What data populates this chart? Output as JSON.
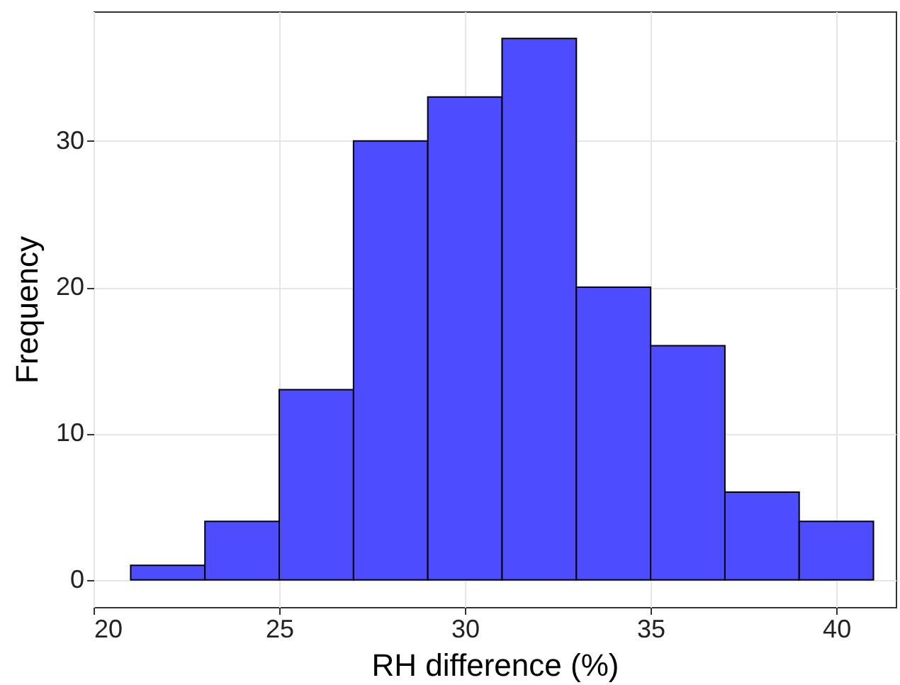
{
  "chart_data": {
    "type": "histogram",
    "xlabel": "RH difference (%)",
    "ylabel": "Frequency",
    "bins": [
      21,
      23,
      25,
      27,
      29,
      31,
      33,
      35,
      37,
      39,
      41
    ],
    "values": [
      1,
      4,
      13,
      30,
      33,
      37,
      20,
      16,
      6,
      4
    ],
    "color": "#4d4dff",
    "xlim": [
      20,
      41.6
    ],
    "ylim": [
      -1.85,
      38.85
    ],
    "xticks": [
      20,
      25,
      30,
      35,
      40
    ],
    "yticks": [
      0,
      10,
      20,
      30
    ],
    "grid": true
  }
}
